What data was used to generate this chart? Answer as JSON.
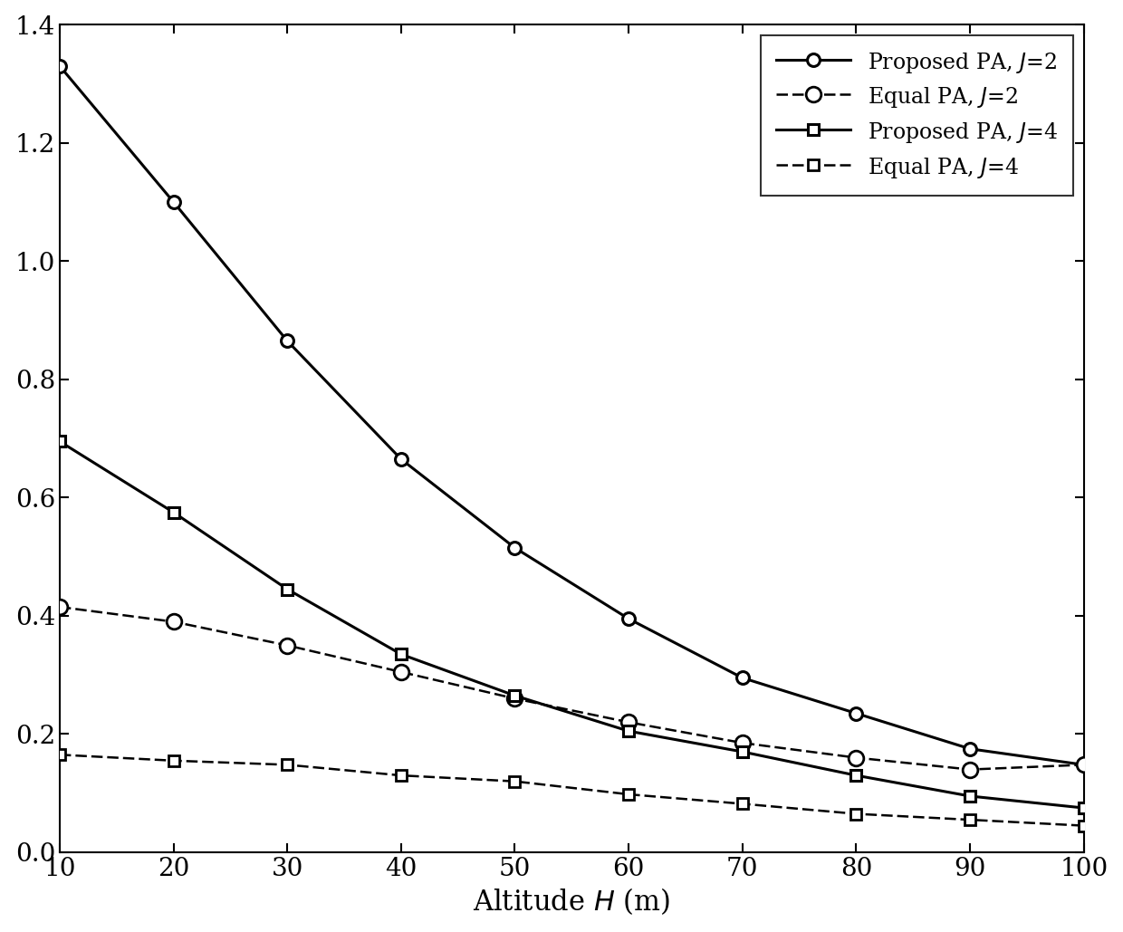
{
  "x": [
    10,
    20,
    30,
    40,
    50,
    60,
    70,
    80,
    90,
    100
  ],
  "proposed_J2": [
    1.33,
    1.1,
    0.865,
    0.665,
    0.515,
    0.395,
    0.295,
    0.235,
    0.175,
    0.148
  ],
  "equal_J2": [
    0.415,
    0.39,
    0.35,
    0.305,
    0.26,
    0.22,
    0.185,
    0.16,
    0.14,
    0.148
  ],
  "proposed_J4": [
    0.695,
    0.575,
    0.445,
    0.335,
    0.265,
    0.205,
    0.17,
    0.13,
    0.095,
    0.075
  ],
  "equal_J4": [
    0.165,
    0.155,
    0.148,
    0.13,
    0.12,
    0.098,
    0.082,
    0.065,
    0.055,
    0.045
  ],
  "xlabel": "Altitude $H$ (m)",
  "xlim": [
    10,
    100
  ],
  "ylim": [
    0,
    1.4
  ],
  "yticks": [
    0,
    0.2,
    0.4,
    0.6,
    0.8,
    1.0,
    1.2,
    1.4
  ],
  "xticks": [
    10,
    20,
    30,
    40,
    50,
    60,
    70,
    80,
    90,
    100
  ],
  "legend_labels": [
    "Proposed PA, $J$=2",
    "Equal PA, $J$=2",
    "Proposed PA, $J$=4",
    "Equal PA, $J$=4"
  ],
  "line_color": "#000000",
  "marker_size_circle": 10,
  "marker_size_square": 8,
  "linewidth_solid": 2.2,
  "linewidth_dashed": 1.8,
  "figure_width": 12.4,
  "figure_height": 10.29,
  "dpi": 100
}
